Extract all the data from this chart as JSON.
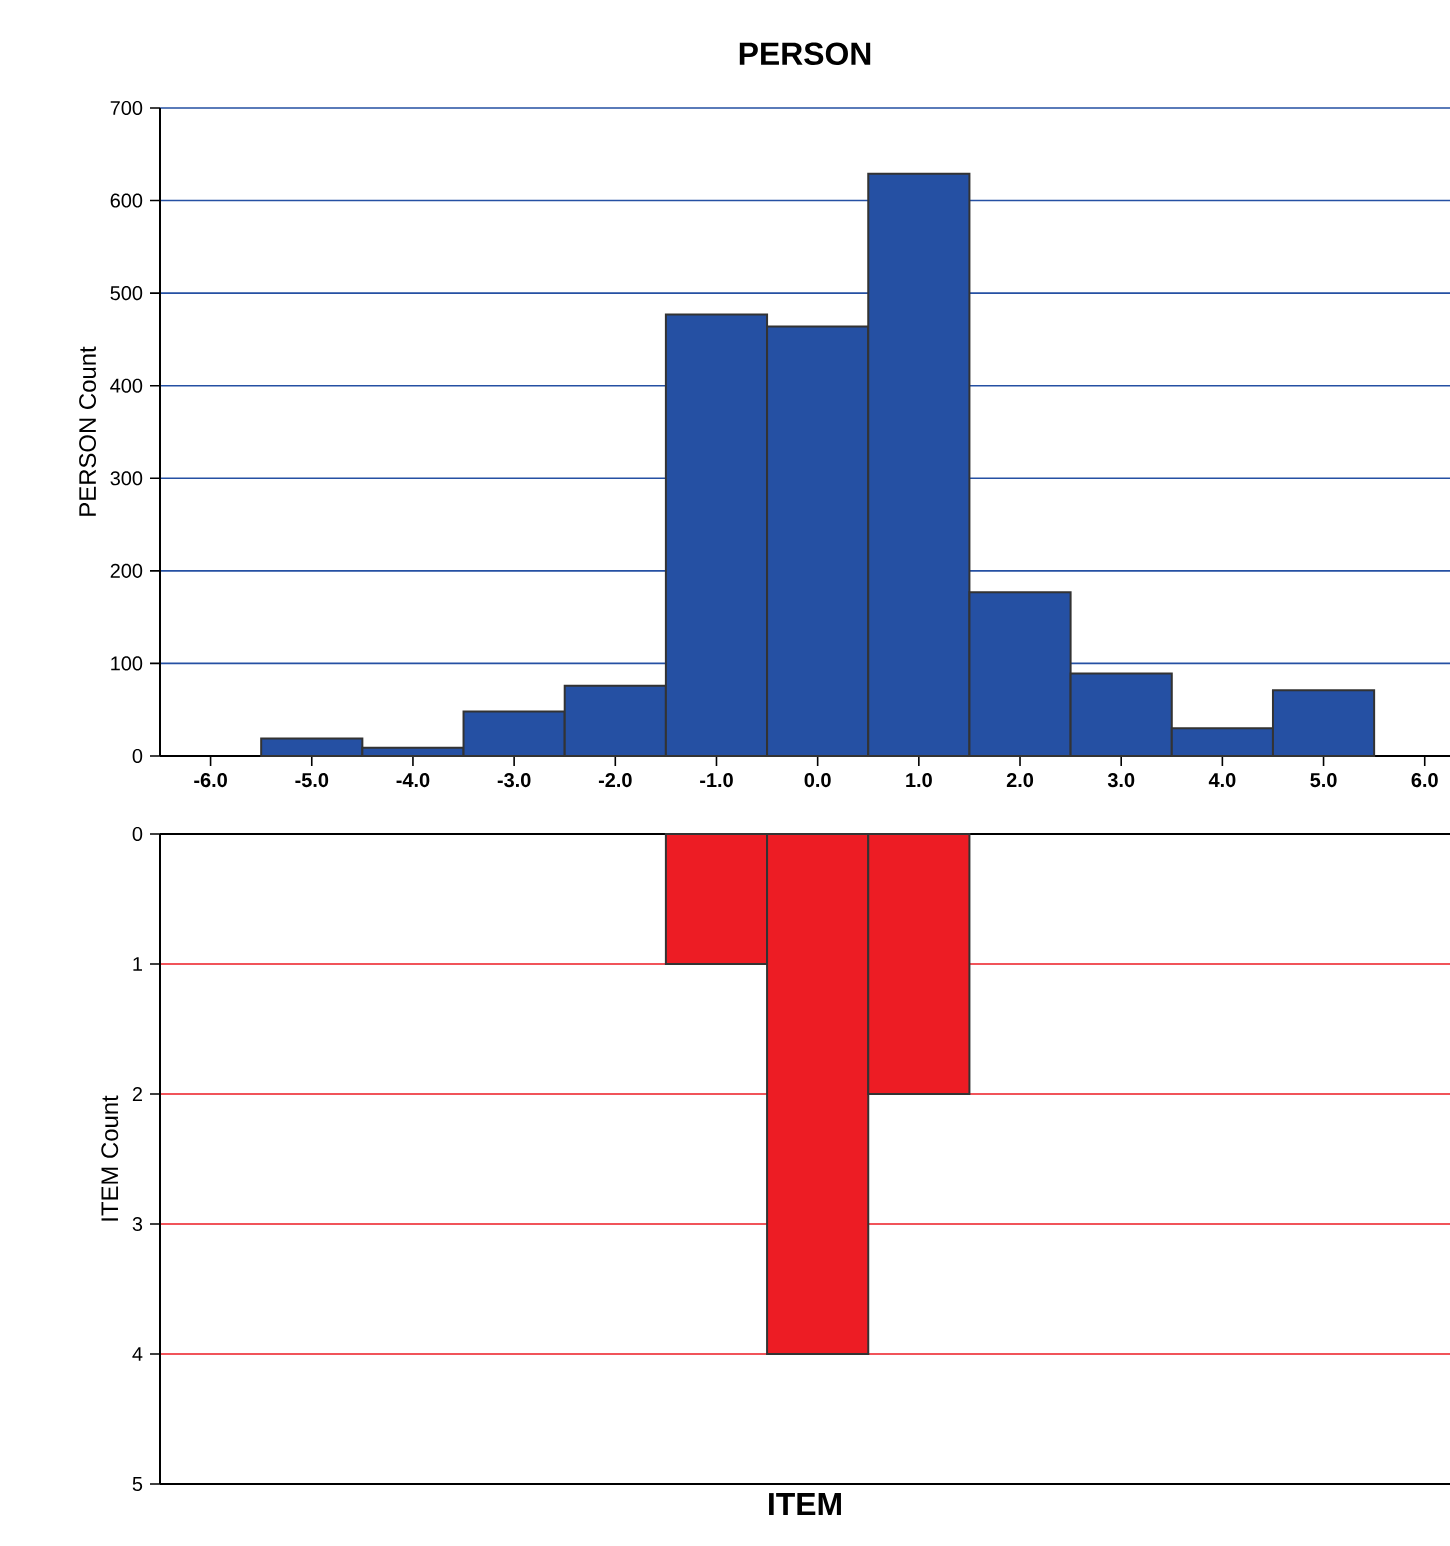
{
  "chart_data": [
    {
      "type": "histogram",
      "title": "PERSON",
      "ylabel": "PERSON Count",
      "bins": [
        -5.5,
        -4.5,
        -3.5,
        -2.5,
        -1.5,
        -0.5,
        0.5,
        1.5,
        2.5,
        3.5,
        4.5,
        5.5
      ],
      "values": [
        19,
        9,
        48,
        76,
        477,
        464,
        629,
        177,
        89,
        30,
        71
      ],
      "color": "#2550a3",
      "xlim": [
        -6.5,
        6.25
      ],
      "ylim": [
        0,
        700
      ],
      "xticks": [
        {
          "value": -6,
          "label": "-6.0"
        },
        {
          "value": -5,
          "label": "-5.0"
        },
        {
          "value": -4,
          "label": "-4.0"
        },
        {
          "value": -3,
          "label": "-3.0"
        },
        {
          "value": -2,
          "label": "-2.0"
        },
        {
          "value": -1,
          "label": "-1.0"
        },
        {
          "value": 0,
          "label": "0.0"
        },
        {
          "value": 1,
          "label": "1.0"
        },
        {
          "value": 2,
          "label": "2.0"
        },
        {
          "value": 3,
          "label": "3.0"
        },
        {
          "value": 4,
          "label": "4.0"
        },
        {
          "value": 5,
          "label": "5.0"
        },
        {
          "value": 6,
          "label": "6.0"
        }
      ],
      "yticks": [
        0,
        100,
        200,
        300,
        400,
        500,
        600,
        700
      ],
      "grid": "y"
    },
    {
      "type": "histogram",
      "title": "ITEM",
      "ylabel": "ITEM Count",
      "bins": [
        -1.5,
        -0.5,
        0.5,
        1.5
      ],
      "values": [
        1,
        4,
        2
      ],
      "color": "#ed1c24",
      "xlim": [
        -6.5,
        6.25
      ],
      "ylim": [
        5,
        0
      ],
      "yticks": [
        0,
        1,
        2,
        3,
        4,
        5
      ],
      "grid": "y",
      "tick_labels": "y"
    }
  ]
}
